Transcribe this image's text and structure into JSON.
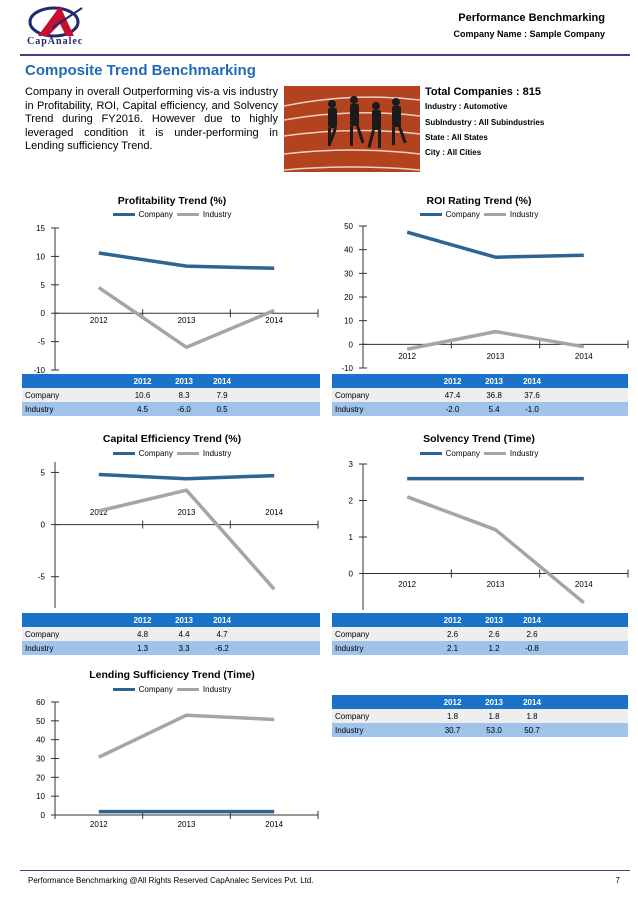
{
  "header": {
    "logo_text": "CapAnalec",
    "title": "Performance Benchmarking",
    "company_line": "Company Name : Sample Company"
  },
  "page_heading": "Composite Trend Benchmarking",
  "intro": "Company in overall Outperforming vis-a vis industry in Profitability, ROI, Capital efficiency, and Solvency Trend during FY2016. However due to highly leveraged condition it is under-performing in Lending sufficiency Trend.",
  "info": {
    "total_companies": "Total Companies : 815",
    "industry": "Industry : Automotive",
    "subindustry": "SubIndustry : All Subindustries",
    "state": "State : All States",
    "city": "City : All Cities"
  },
  "legend": {
    "company": "Company",
    "industry": "Industry"
  },
  "colors": {
    "company": "#2e6492",
    "industry": "#a5a5a5",
    "table_header": "#1a73c9",
    "table_company_row": "#eeeeee",
    "table_industry_row": "#9fc3ea",
    "heading": "#1f6bb5"
  },
  "chart_data": [
    {
      "type": "line",
      "title": "Profitability Trend (%)",
      "x": [
        "2012",
        "2013",
        "2014"
      ],
      "ylim": [
        -10,
        15
      ],
      "yticks": [
        "15",
        "10",
        "5",
        "0",
        "-5",
        "-10"
      ],
      "series": [
        {
          "name": "Company",
          "values": [
            10.6,
            8.3,
            7.9
          ]
        },
        {
          "name": "Industry",
          "values": [
            4.5,
            -6.0,
            0.5
          ]
        }
      ],
      "table": {
        "company": [
          "10.6",
          "8.3",
          "7.9"
        ],
        "industry": [
          "4.5",
          "-6.0",
          "0.5"
        ]
      }
    },
    {
      "type": "line",
      "title": "ROI Rating Trend (%)",
      "x": [
        "2012",
        "2013",
        "2014"
      ],
      "ylim": [
        -10,
        50
      ],
      "yticks": [
        "50",
        "40",
        "30",
        "20",
        "10",
        "0",
        "-10"
      ],
      "series": [
        {
          "name": "Company",
          "values": [
            47.4,
            36.8,
            37.6
          ]
        },
        {
          "name": "Industry",
          "values": [
            -2.0,
            5.4,
            -1.0
          ]
        }
      ],
      "table": {
        "company": [
          "47.4",
          "36.8",
          "37.6"
        ],
        "industry": [
          "-2.0",
          "5.4",
          "-1.0"
        ]
      }
    },
    {
      "type": "line",
      "title": "Capital Efficiency Trend (%)",
      "x": [
        "2012",
        "2013",
        "2014"
      ],
      "ylim": [
        -8,
        6
      ],
      "yticks": [
        "5",
        "0",
        "-5"
      ],
      "series": [
        {
          "name": "Company",
          "values": [
            4.8,
            4.4,
            4.7
          ]
        },
        {
          "name": "Industry",
          "values": [
            1.3,
            3.3,
            -6.2
          ]
        }
      ],
      "table": {
        "company": [
          "4.8",
          "4.4",
          "4.7"
        ],
        "industry": [
          "1.3",
          "3.3",
          "-6.2"
        ]
      }
    },
    {
      "type": "line",
      "title": "Solvency Trend (Time)",
      "x": [
        "2012",
        "2013",
        "2014"
      ],
      "ylim": [
        -1,
        3
      ],
      "yticks": [
        "3",
        "2",
        "1",
        "0"
      ],
      "series": [
        {
          "name": "Company",
          "values": [
            2.6,
            2.6,
            2.6
          ]
        },
        {
          "name": "Industry",
          "values": [
            2.1,
            1.2,
            -0.8
          ]
        }
      ],
      "table": {
        "company": [
          "2.6",
          "2.6",
          "2.6"
        ],
        "industry": [
          "2.1",
          "1.2",
          "-0.8"
        ]
      }
    },
    {
      "type": "line",
      "title": "Lending Sufficiency Trend (Time)",
      "x": [
        "2012",
        "2013",
        "2014"
      ],
      "ylim": [
        0,
        60
      ],
      "yticks": [
        "60",
        "50",
        "40",
        "30",
        "20",
        "10",
        "0"
      ],
      "series": [
        {
          "name": "Company",
          "values": [
            1.8,
            1.8,
            1.8
          ]
        },
        {
          "name": "Industry",
          "values": [
            30.7,
            53.0,
            50.7
          ]
        }
      ],
      "table": {
        "company": [
          "1.8",
          "1.8",
          "1.8"
        ],
        "industry": [
          "30.7",
          "53.0",
          "50.7"
        ]
      }
    }
  ],
  "footer": {
    "text": "Performance Benchmarking @All Rights Reserved CapAnalec Services Pvt. Ltd.",
    "page": "7"
  }
}
